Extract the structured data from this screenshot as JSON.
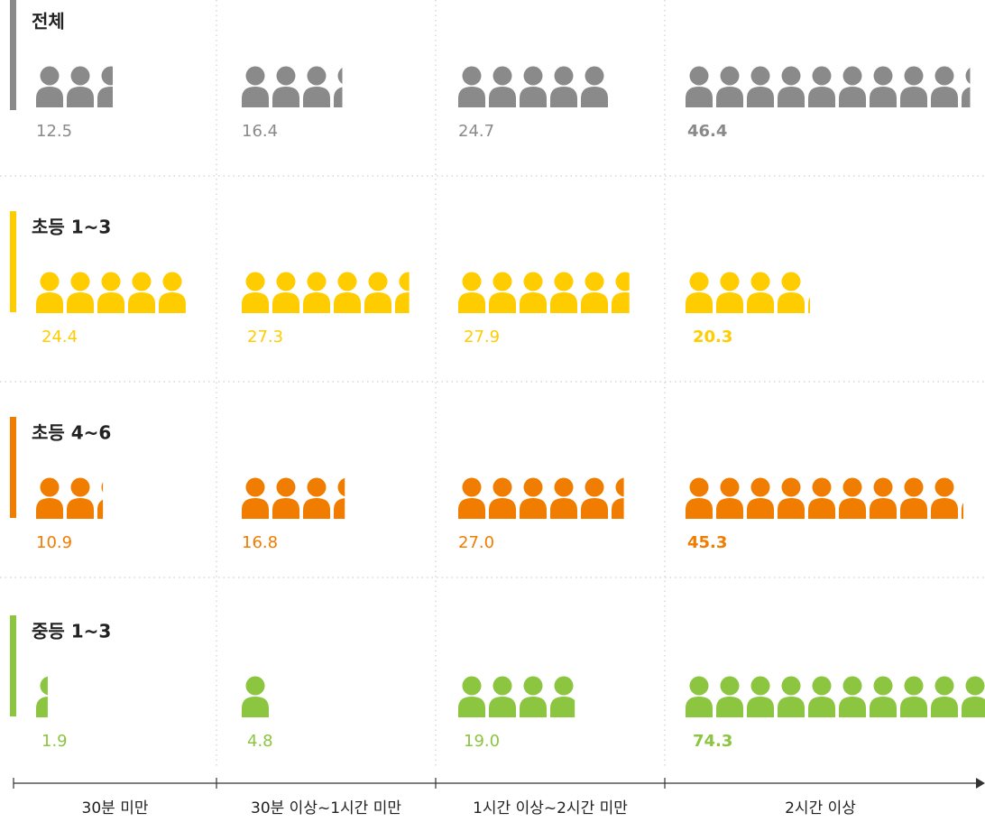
{
  "chart_data": {
    "type": "pictogram",
    "categories": [
      "30분 미만",
      "30분 이상~1시간 미만",
      "1시간 이상~2시간 미만",
      "2시간 이상"
    ],
    "series": [
      {
        "name": "전체",
        "color": "#8a8a8a",
        "values": [
          12.5,
          16.4,
          24.7,
          46.4
        ],
        "value_labels": [
          "12.5",
          "16.4",
          "24.7",
          "46.4"
        ]
      },
      {
        "name": "초등 1~3",
        "color": "#ffcc00",
        "values": [
          24.4,
          27.3,
          27.9,
          20.3
        ],
        "value_labels": [
          "24.4",
          "27.3",
          "27.9",
          "20.3"
        ]
      },
      {
        "name": "초등 4~6",
        "color": "#f07c00",
        "values": [
          10.9,
          16.8,
          27.0,
          45.3
        ],
        "value_labels": [
          "10.9",
          "16.8",
          "27.0",
          "45.3"
        ]
      },
      {
        "name": "중등 1~3",
        "color": "#8cc540",
        "values": [
          1.9,
          4.8,
          19.0,
          74.3
        ],
        "value_labels": [
          "1.9",
          "4.8",
          "19.0",
          "74.3"
        ]
      }
    ]
  }
}
